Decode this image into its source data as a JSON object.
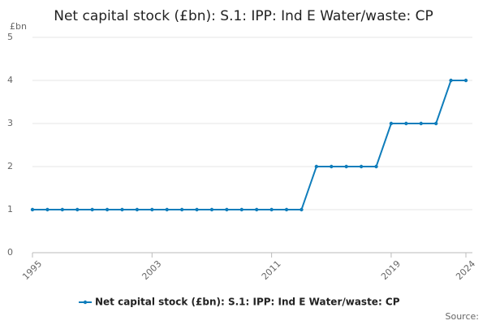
{
  "chart_data": {
    "type": "line",
    "title": "Net capital stock (£bn): S.1: IPP: Ind E Water/waste: CP",
    "y_unit": "£bn",
    "source": "Source:",
    "x": [
      1995,
      1996,
      1997,
      1998,
      1999,
      2000,
      2001,
      2002,
      2003,
      2004,
      2005,
      2006,
      2007,
      2008,
      2009,
      2010,
      2011,
      2012,
      2013,
      2014,
      2015,
      2016,
      2017,
      2018,
      2019,
      2020,
      2021,
      2022,
      2023,
      2024
    ],
    "series": [
      {
        "name": "Net capital stock (£bn): S.1: IPP: Ind E Water/waste: CP",
        "color": "#0f7dbb",
        "values": [
          1,
          1,
          1,
          1,
          1,
          1,
          1,
          1,
          1,
          1,
          1,
          1,
          1,
          1,
          1,
          1,
          1,
          1,
          1,
          2,
          2,
          2,
          2,
          2,
          3,
          3,
          3,
          3,
          4,
          4
        ]
      }
    ],
    "xlim": [
      1995,
      2024
    ],
    "xticks": [
      1995,
      2003,
      2011,
      2019,
      2024
    ],
    "ylim": [
      0,
      5
    ],
    "yticks": [
      0,
      1,
      2,
      3,
      4,
      5
    ],
    "grid": true
  }
}
